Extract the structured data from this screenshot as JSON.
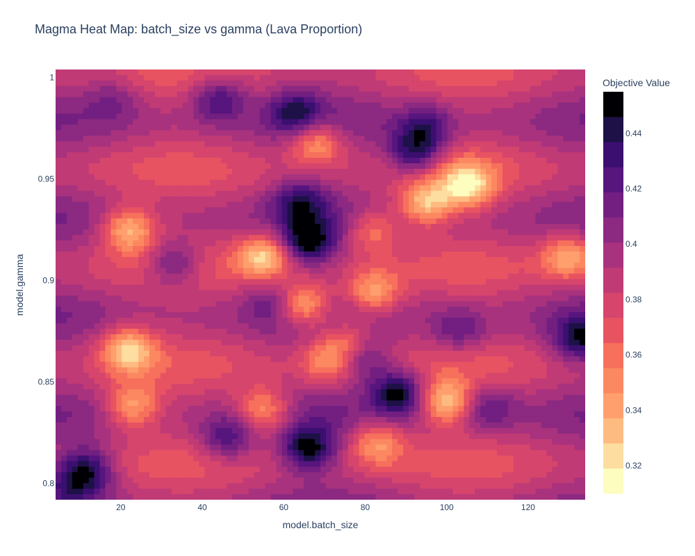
{
  "chart_data": {
    "type": "heatmap",
    "title": "Magma Heat Map: batch_size vs gamma (Lava Proportion)",
    "xlabel": "model.batch_size",
    "ylabel": "model.gamma",
    "xlim": [
      4,
      134
    ],
    "ylim": [
      0.792,
      1.004
    ],
    "x_ticks": [
      20,
      40,
      60,
      80,
      100,
      120
    ],
    "y_ticks": [
      0.8,
      0.85,
      0.9,
      0.95,
      1
    ],
    "y_tick_labels": [
      "0.8",
      "0.85",
      "0.9",
      "0.95",
      "1"
    ],
    "colorbar": {
      "title": "Objective Value",
      "range": [
        0.31,
        0.455
      ],
      "ticks": [
        0.32,
        0.34,
        0.36,
        0.38,
        0.4,
        0.42,
        0.44
      ],
      "tick_labels": [
        "0.32",
        "0.34",
        "0.36",
        "0.38",
        "0.4",
        "0.42",
        "0.44"
      ],
      "colorscale": "Magma (reversed)",
      "levels": 15
    },
    "grid": false,
    "base_value": 0.39,
    "features": [
      {
        "x": 12,
        "y": 0.807,
        "v": 0.44
      },
      {
        "x": 8,
        "y": 0.8,
        "v": 0.42
      },
      {
        "x": 66,
        "y": 0.817,
        "v": 0.45
      },
      {
        "x": 46,
        "y": 0.822,
        "v": 0.43
      },
      {
        "x": 88,
        "y": 0.845,
        "v": 0.45
      },
      {
        "x": 66,
        "y": 0.919,
        "v": 0.45
      },
      {
        "x": 64,
        "y": 0.939,
        "v": 0.43
      },
      {
        "x": 44,
        "y": 0.99,
        "v": 0.43
      },
      {
        "x": 18,
        "y": 0.99,
        "v": 0.41
      },
      {
        "x": 92,
        "y": 0.963,
        "v": 0.44
      },
      {
        "x": 95,
        "y": 0.975,
        "v": 0.425
      },
      {
        "x": 133,
        "y": 0.871,
        "v": 0.44
      },
      {
        "x": 103,
        "y": 0.875,
        "v": 0.42
      },
      {
        "x": 33,
        "y": 0.908,
        "v": 0.43
      },
      {
        "x": 79,
        "y": 0.862,
        "v": 0.43
      },
      {
        "x": 57,
        "y": 0.89,
        "v": 0.41
      },
      {
        "x": 110,
        "y": 0.838,
        "v": 0.42
      },
      {
        "x": 63,
        "y": 0.983,
        "v": 0.43
      },
      {
        "x": 22,
        "y": 0.925,
        "v": 0.33
      },
      {
        "x": 55,
        "y": 0.912,
        "v": 0.33
      },
      {
        "x": 95,
        "y": 0.938,
        "v": 0.33
      },
      {
        "x": 105,
        "y": 0.947,
        "v": 0.325
      },
      {
        "x": 22,
        "y": 0.866,
        "v": 0.33
      },
      {
        "x": 100,
        "y": 0.84,
        "v": 0.33
      },
      {
        "x": 23,
        "y": 0.838,
        "v": 0.34
      },
      {
        "x": 55,
        "y": 0.836,
        "v": 0.34
      },
      {
        "x": 83,
        "y": 0.82,
        "v": 0.345
      },
      {
        "x": 76,
        "y": 0.87,
        "v": 0.35
      },
      {
        "x": 68,
        "y": 0.968,
        "v": 0.34
      },
      {
        "x": 130,
        "y": 0.912,
        "v": 0.34
      },
      {
        "x": 82,
        "y": 0.894,
        "v": 0.34
      },
      {
        "x": 65,
        "y": 0.888,
        "v": 0.33
      },
      {
        "x": 71,
        "y": 0.86,
        "v": 0.35
      },
      {
        "x": 82,
        "y": 0.925,
        "v": 0.35
      }
    ]
  }
}
